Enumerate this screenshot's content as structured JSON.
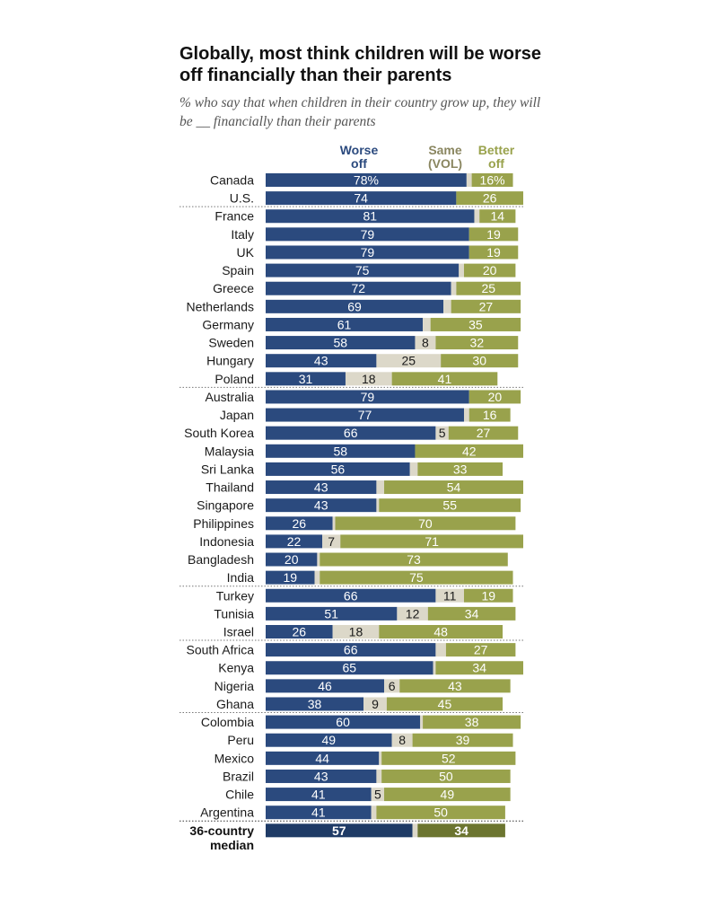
{
  "title": "Globally, most think children will be worse off financially than their parents",
  "subtitle": "% who say that when children in their country grow up, they will be __ financially than their parents",
  "colors": {
    "worse": "#2b4a7e",
    "same": "#dcd8c9",
    "better": "#99a24c",
    "median_worse": "#1f3b66",
    "median_better": "#6c7530",
    "label_dark": "#1a1a1a",
    "header_same": "#8a8660"
  },
  "chart_data": {
    "type": "bar",
    "stacked": true,
    "orientation": "horizontal",
    "title": "Globally, most think children will be worse off financially than their parents",
    "subtitle": "% who say that when children in their country grow up, they will be __ financially than their parents",
    "series_headers": [
      "Worse off",
      "Same (VOL)",
      "Better off"
    ],
    "xlim": [
      0,
      100
    ],
    "grid": false,
    "rows": [
      {
        "label": "Canada",
        "worse": 78,
        "same": 2,
        "better": 16,
        "worse_label": "78%",
        "same_label": "",
        "better_label": "16%",
        "group": 0
      },
      {
        "label": "U.S.",
        "worse": 74,
        "same": 0,
        "better": 26,
        "worse_label": "74",
        "same_label": "",
        "better_label": "26",
        "group": 0
      },
      {
        "label": "France",
        "worse": 81,
        "same": 2,
        "better": 14,
        "worse_label": "81",
        "same_label": "",
        "better_label": "14",
        "group": 1
      },
      {
        "label": "Italy",
        "worse": 79,
        "same": 0,
        "better": 19,
        "worse_label": "79",
        "same_label": "",
        "better_label": "19",
        "group": 1
      },
      {
        "label": "UK",
        "worse": 79,
        "same": 0,
        "better": 19,
        "worse_label": "79",
        "same_label": "",
        "better_label": "19",
        "group": 1
      },
      {
        "label": "Spain",
        "worse": 75,
        "same": 2,
        "better": 20,
        "worse_label": "75",
        "same_label": "",
        "better_label": "20",
        "group": 1
      },
      {
        "label": "Greece",
        "worse": 72,
        "same": 2,
        "better": 25,
        "worse_label": "72",
        "same_label": "",
        "better_label": "25",
        "group": 1
      },
      {
        "label": "Netherlands",
        "worse": 69,
        "same": 3,
        "better": 27,
        "worse_label": "69",
        "same_label": "",
        "better_label": "27",
        "group": 1
      },
      {
        "label": "Germany",
        "worse": 61,
        "same": 3,
        "better": 35,
        "worse_label": "61",
        "same_label": "",
        "better_label": "35",
        "group": 1
      },
      {
        "label": "Sweden",
        "worse": 58,
        "same": 8,
        "better": 32,
        "worse_label": "58",
        "same_label": "8",
        "better_label": "32",
        "group": 1
      },
      {
        "label": "Hungary",
        "worse": 43,
        "same": 25,
        "better": 30,
        "worse_label": "43",
        "same_label": "25",
        "better_label": "30",
        "group": 1
      },
      {
        "label": "Poland",
        "worse": 31,
        "same": 18,
        "better": 41,
        "worse_label": "31",
        "same_label": "18",
        "better_label": "41",
        "group": 1
      },
      {
        "label": "Australia",
        "worse": 79,
        "same": 0,
        "better": 20,
        "worse_label": "79",
        "same_label": "",
        "better_label": "20",
        "group": 2
      },
      {
        "label": "Japan",
        "worse": 77,
        "same": 2,
        "better": 16,
        "worse_label": "77",
        "same_label": "",
        "better_label": "16",
        "group": 2
      },
      {
        "label": "South Korea",
        "worse": 66,
        "same": 5,
        "better": 27,
        "worse_label": "66",
        "same_label": "5",
        "better_label": "27",
        "group": 2
      },
      {
        "label": "Malaysia",
        "worse": 58,
        "same": 0,
        "better": 42,
        "worse_label": "58",
        "same_label": "",
        "better_label": "42",
        "group": 2
      },
      {
        "label": "Sri Lanka",
        "worse": 56,
        "same": 3,
        "better": 33,
        "worse_label": "56",
        "same_label": "",
        "better_label": "33",
        "group": 2
      },
      {
        "label": "Thailand",
        "worse": 43,
        "same": 3,
        "better": 54,
        "worse_label": "43",
        "same_label": "",
        "better_label": "54",
        "group": 2
      },
      {
        "label": "Singapore",
        "worse": 43,
        "same": 1,
        "better": 55,
        "worse_label": "43",
        "same_label": "",
        "better_label": "55",
        "group": 2
      },
      {
        "label": "Philippines",
        "worse": 26,
        "same": 1,
        "better": 70,
        "worse_label": "26",
        "same_label": "",
        "better_label": "70",
        "group": 2
      },
      {
        "label": "Indonesia",
        "worse": 22,
        "same": 7,
        "better": 71,
        "worse_label": "22",
        "same_label": "7",
        "better_label": "71",
        "group": 2
      },
      {
        "label": "Bangladesh",
        "worse": 20,
        "same": 1,
        "better": 73,
        "worse_label": "20",
        "same_label": "",
        "better_label": "73",
        "group": 2
      },
      {
        "label": "India",
        "worse": 19,
        "same": 2,
        "better": 75,
        "worse_label": "19",
        "same_label": "",
        "better_label": "75",
        "group": 2
      },
      {
        "label": "Turkey",
        "worse": 66,
        "same": 11,
        "better": 19,
        "worse_label": "66",
        "same_label": "11",
        "better_label": "19",
        "group": 3
      },
      {
        "label": "Tunisia",
        "worse": 51,
        "same": 12,
        "better": 34,
        "worse_label": "51",
        "same_label": "12",
        "better_label": "34",
        "group": 3
      },
      {
        "label": "Israel",
        "worse": 26,
        "same": 18,
        "better": 48,
        "worse_label": "26",
        "same_label": "18",
        "better_label": "48",
        "group": 3
      },
      {
        "label": "South Africa",
        "worse": 66,
        "same": 4,
        "better": 27,
        "worse_label": "66",
        "same_label": "",
        "better_label": "27",
        "group": 4
      },
      {
        "label": "Kenya",
        "worse": 65,
        "same": 1,
        "better": 34,
        "worse_label": "65",
        "same_label": "",
        "better_label": "34",
        "group": 4
      },
      {
        "label": "Nigeria",
        "worse": 46,
        "same": 6,
        "better": 43,
        "worse_label": "46",
        "same_label": "6",
        "better_label": "43",
        "group": 4
      },
      {
        "label": "Ghana",
        "worse": 38,
        "same": 9,
        "better": 45,
        "worse_label": "38",
        "same_label": "9",
        "better_label": "45",
        "group": 4
      },
      {
        "label": "Colombia",
        "worse": 60,
        "same": 1,
        "better": 38,
        "worse_label": "60",
        "same_label": "",
        "better_label": "38",
        "group": 5
      },
      {
        "label": "Peru",
        "worse": 49,
        "same": 8,
        "better": 39,
        "worse_label": "49",
        "same_label": "8",
        "better_label": "39",
        "group": 5
      },
      {
        "label": "Mexico",
        "worse": 44,
        "same": 1,
        "better": 52,
        "worse_label": "44",
        "same_label": "",
        "better_label": "52",
        "group": 5
      },
      {
        "label": "Brazil",
        "worse": 43,
        "same": 2,
        "better": 50,
        "worse_label": "43",
        "same_label": "",
        "better_label": "50",
        "group": 5
      },
      {
        "label": "Chile",
        "worse": 41,
        "same": 5,
        "better": 49,
        "worse_label": "41",
        "same_label": "5",
        "better_label": "49",
        "group": 5
      },
      {
        "label": "Argentina",
        "worse": 41,
        "same": 2,
        "better": 50,
        "worse_label": "41",
        "same_label": "",
        "better_label": "50",
        "group": 5
      },
      {
        "label": "36-country median",
        "worse": 57,
        "same": 2,
        "better": 34,
        "worse_label": "57",
        "same_label": "",
        "better_label": "34",
        "group": 6,
        "median": true
      }
    ]
  }
}
